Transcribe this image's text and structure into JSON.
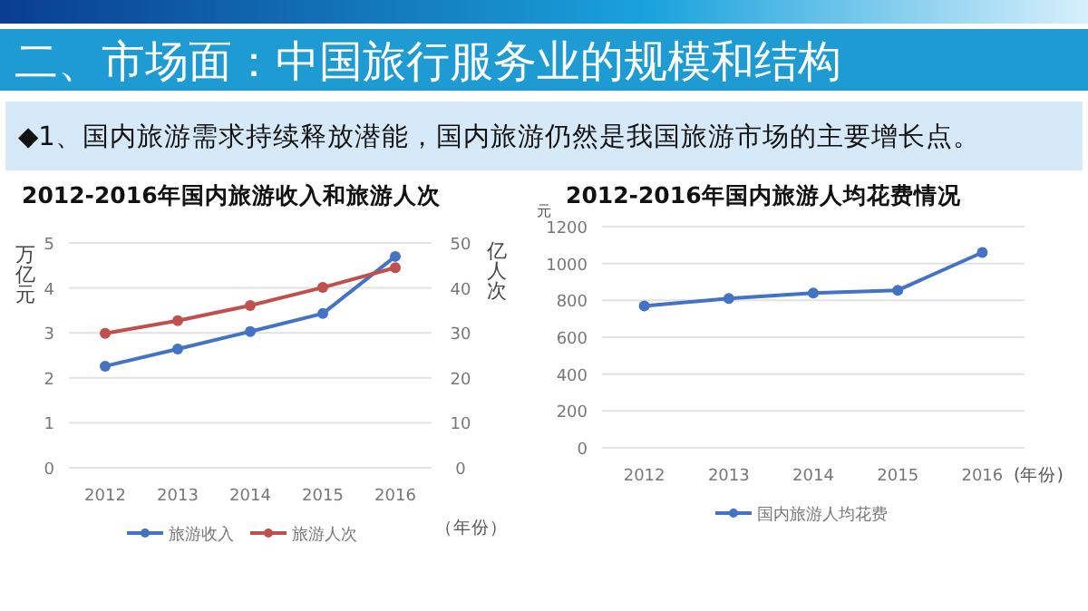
{
  "chart_data": [
    {
      "type": "line",
      "title": "2012-2016年国内旅游收入和旅游人次",
      "annotations": [
        "二、市场面：中国旅行服务业的规模和结构",
        "◆1、国内旅游需求持续释放潜能，国内旅游仍然是我国旅游市场的主要增长点。"
      ],
      "categories": [
        "2012",
        "2013",
        "2014",
        "2015",
        "2016"
      ],
      "series": [
        {
          "name": "旅游收入",
          "color": "#4472c4",
          "values": [
            2.26,
            2.64,
            3.03,
            3.43,
            4.7
          ]
        },
        {
          "name": "旅游人次",
          "color": "#c0504d",
          "values": [
            29.9,
            32.7,
            36.1,
            40.1,
            44.5
          ],
          "axis": "y2"
        }
      ],
      "ylim": [
        0,
        5
      ],
      "yticks": [
        0,
        1,
        2,
        3,
        4,
        5
      ],
      "y2lim": [
        0,
        50
      ],
      "y2ticks": [
        0,
        10,
        20,
        30,
        40,
        50
      ],
      "ylabel": "万亿元",
      "y2label": "亿人次",
      "xlabel": "（年份）",
      "legend": "bottom",
      "grid": "y",
      "marker": "circle"
    },
    {
      "type": "line",
      "title": "2012-2016年国内旅游人均花费情况",
      "categories": [
        "2012",
        "2013",
        "2014",
        "2015",
        "2016"
      ],
      "series": [
        {
          "name": "国内旅游人均花费",
          "color": "#4472c4",
          "values": [
            770,
            810,
            840,
            855,
            1060
          ]
        }
      ],
      "ylim": [
        0,
        1200
      ],
      "yticks": [
        0,
        200,
        400,
        600,
        800,
        1000,
        1200
      ],
      "ylabel": "元",
      "xlabel": "(年份)",
      "legend": "bottom",
      "grid": "y",
      "marker": "circle"
    }
  ]
}
